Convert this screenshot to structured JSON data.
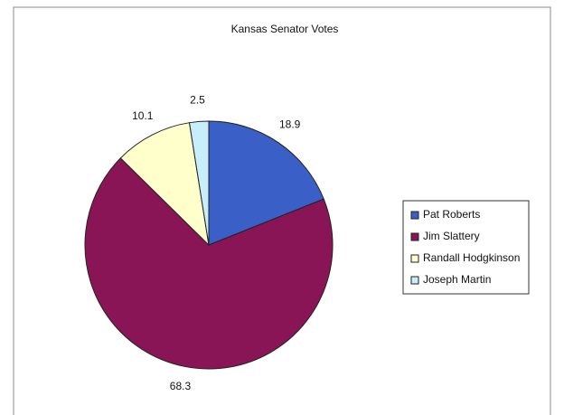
{
  "chart_data": {
    "type": "pie",
    "title": "Kansas Senator Votes",
    "categories": [
      "Pat Roberts",
      "Jim Slattery",
      "Randall Hodgkinson",
      "Joseph Martin"
    ],
    "values": [
      18.9,
      68.3,
      10.1,
      2.5
    ],
    "colors": [
      "#3a5fc6",
      "#8a1556",
      "#ffffcc",
      "#c8eefc"
    ],
    "legend": "right"
  }
}
